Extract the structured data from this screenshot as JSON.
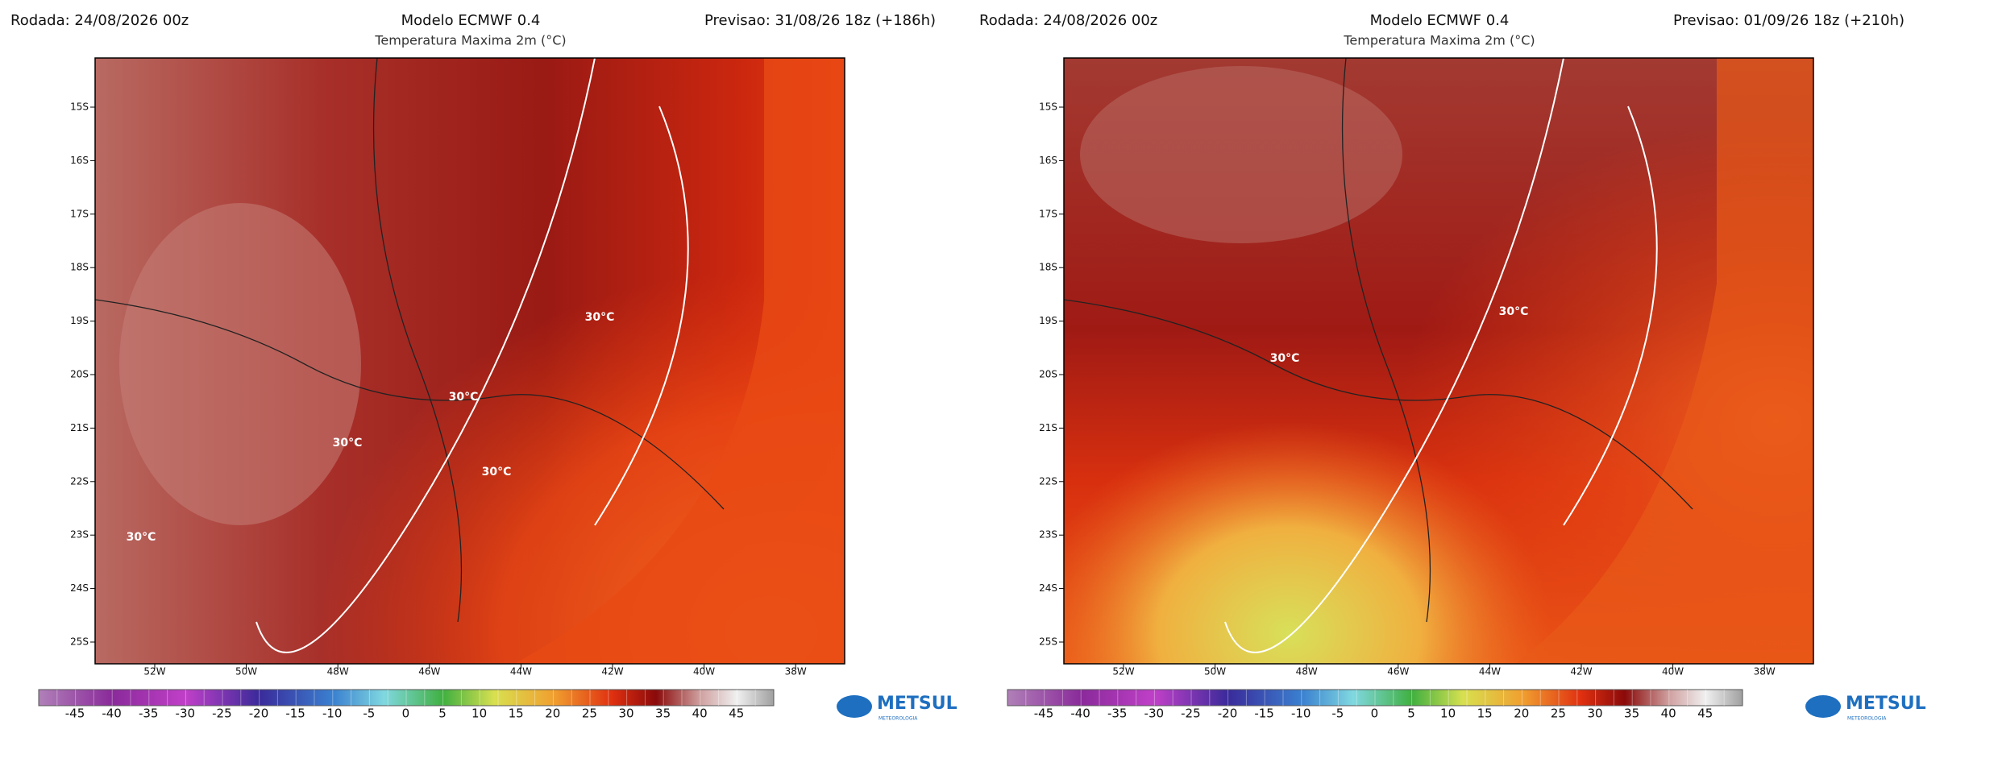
{
  "panels": [
    {
      "rodada": "Rodada: 24/08/2026 00z",
      "modelo": "Modelo ECMWF 0.4",
      "title": "Temperatura Maxima 2m (°C)",
      "previsao": "Previsao: 31/08/26 18z (+186h)",
      "lat_labels": [
        "15S",
        "16S",
        "17S",
        "18S",
        "19S",
        "20S",
        "21S",
        "22S",
        "23S",
        "24S",
        "25S"
      ],
      "lon_labels": [
        "52W",
        "50W",
        "48W",
        "46W",
        "44W",
        "42W",
        "40W",
        "38W"
      ],
      "contour_labels": [
        "30°C",
        "30°C",
        "30°C",
        "30°C",
        "30°C"
      ],
      "colorbar_labels": [
        "-45",
        "-40",
        "-35",
        "-30",
        "-25",
        "-20",
        "-15",
        "-10",
        "-5",
        "0",
        "5",
        "10",
        "15",
        "20",
        "25",
        "30",
        "35",
        "40",
        "45"
      ],
      "logo": "METSUL",
      "logo_sub": "METEOROLOGIA"
    },
    {
      "rodada": "Rodada: 24/08/2026 00z",
      "modelo": "Modelo ECMWF 0.4",
      "title": "Temperatura Maxima 2m (°C)",
      "previsao": "Previsao: 01/09/26 18z (+210h)",
      "lat_labels": [
        "15S",
        "16S",
        "17S",
        "18S",
        "19S",
        "20S",
        "21S",
        "22S",
        "23S",
        "24S",
        "25S"
      ],
      "lon_labels": [
        "52W",
        "50W",
        "48W",
        "46W",
        "44W",
        "42W",
        "40W",
        "38W"
      ],
      "contour_labels": [
        "30°C",
        "30°C"
      ],
      "colorbar_labels": [
        "-45",
        "-40",
        "-35",
        "-30",
        "-25",
        "-20",
        "-15",
        "-10",
        "-5",
        "0",
        "5",
        "10",
        "15",
        "20",
        "25",
        "30",
        "35",
        "40",
        "45"
      ],
      "logo": "METSUL",
      "logo_sub": "METEOROLOGIA"
    }
  ]
}
